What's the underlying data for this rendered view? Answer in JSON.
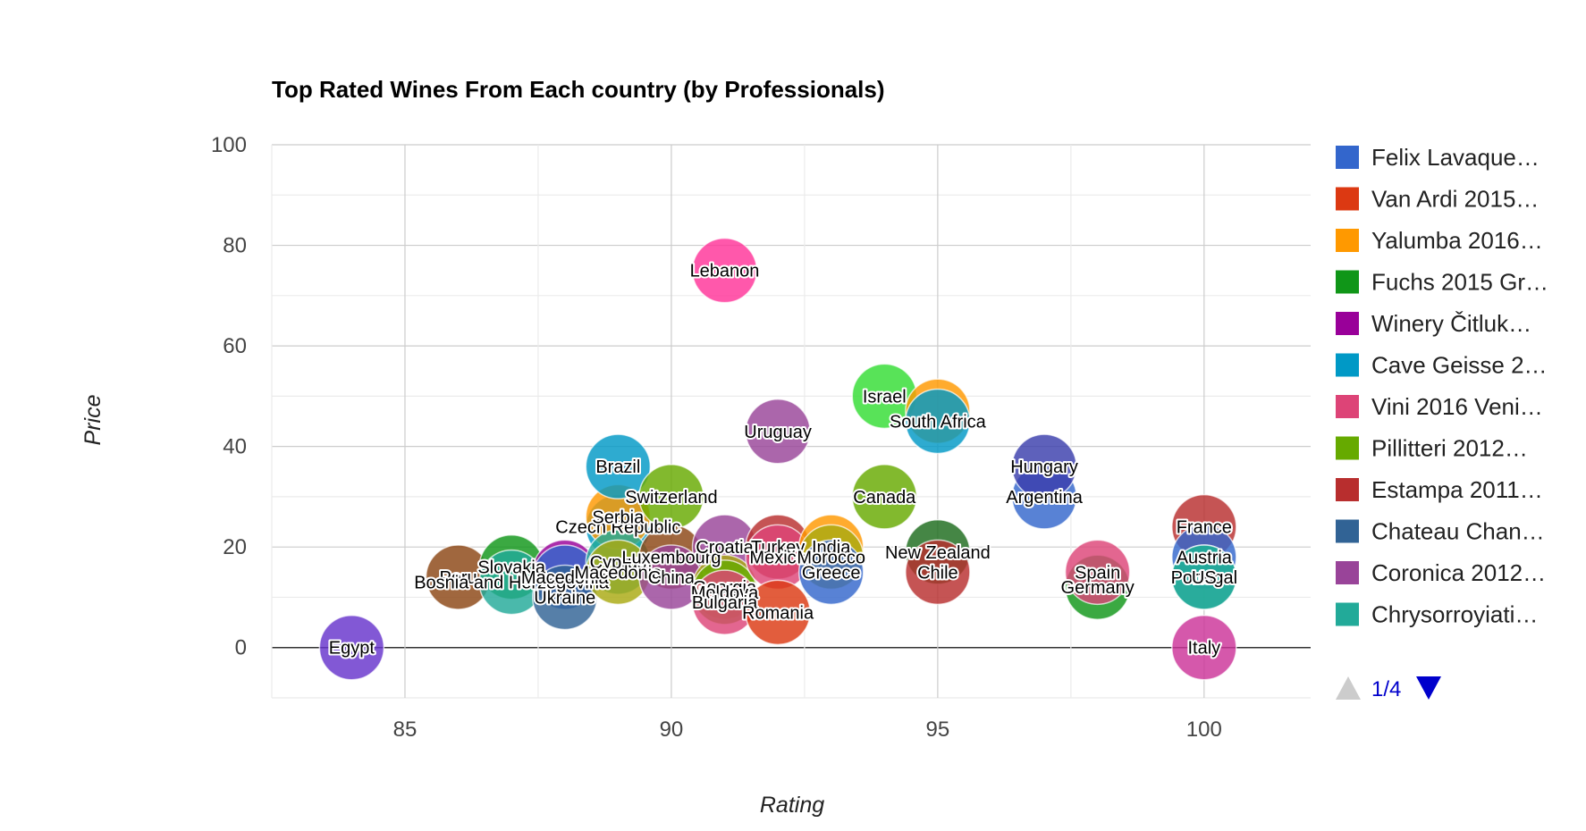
{
  "chart_data": {
    "type": "scatter",
    "variant": "bubble",
    "title": "Top Rated Wines From Each country (by Professionals)",
    "xlabel": "Rating",
    "ylabel": "Price",
    "xlim": [
      82.5,
      102
    ],
    "ylim": [
      -10,
      100
    ],
    "x_ticks": [
      85,
      90,
      95,
      100
    ],
    "y_ticks": [
      0,
      20,
      40,
      60,
      80,
      100
    ],
    "grid": true,
    "legend_position": "right",
    "pager": {
      "text": "1/4"
    },
    "legend": [
      {
        "label": "Felix Lavaque…",
        "color": "#3366cc"
      },
      {
        "label": "Van Ardi 2015…",
        "color": "#dc3912"
      },
      {
        "label": "Yalumba 2016…",
        "color": "#ff9900"
      },
      {
        "label": "Fuchs 2015 Gr…",
        "color": "#109618"
      },
      {
        "label": "Winery Čitluk…",
        "color": "#990099"
      },
      {
        "label": "Cave Geisse 2…",
        "color": "#0099c6"
      },
      {
        "label": "Vini 2016 Veni…",
        "color": "#dd4477"
      },
      {
        "label": "Pillitteri 2012…",
        "color": "#66aa00"
      },
      {
        "label": "Estampa 2011…",
        "color": "#b82e2e"
      },
      {
        "label": "Chateau Chan…",
        "color": "#316395"
      },
      {
        "label": "Coronica 2012…",
        "color": "#994499"
      },
      {
        "label": "Chrysorroyiati…",
        "color": "#22aa99"
      }
    ],
    "points": [
      {
        "label": "Egypt",
        "x": 84,
        "y": 0,
        "color": "#6633cc"
      },
      {
        "label": "Peru",
        "x": 86,
        "y": 14,
        "color": "#8b4513"
      },
      {
        "label": "Slovakia",
        "x": 87,
        "y": 16,
        "color": "#109618"
      },
      {
        "label": "Bosnia and Herzegovina",
        "x": 87,
        "y": 13,
        "color": "#22aa99"
      },
      {
        "label": "",
        "x": 88,
        "y": 15,
        "color": "#990099"
      },
      {
        "label": "Macedonia",
        "x": 88,
        "y": 14,
        "color": "#3366cc"
      },
      {
        "label": "Ukraine",
        "x": 88,
        "y": 10,
        "color": "#316395"
      },
      {
        "label": "Czech Republic",
        "x": 89,
        "y": 24,
        "color": "#0099c6"
      },
      {
        "label": "Serbia",
        "x": 89,
        "y": 26,
        "color": "#ff9900"
      },
      {
        "label": "Brazil",
        "x": 89,
        "y": 36,
        "color": "#0099c6"
      },
      {
        "label": "Cyprus",
        "x": 89,
        "y": 17,
        "color": "#22aa99"
      },
      {
        "label": "Macedonia",
        "x": 89,
        "y": 15,
        "color": "#aaaa11"
      },
      {
        "label": "Switzerland",
        "x": 90,
        "y": 30,
        "color": "#66aa00"
      },
      {
        "label": "Luxembourg",
        "x": 90,
        "y": 18,
        "color": "#8b4513"
      },
      {
        "label": "China",
        "x": 90,
        "y": 14,
        "color": "#994499"
      },
      {
        "label": "Lebanon",
        "x": 91,
        "y": 75,
        "color": "#ff3399"
      },
      {
        "label": "Croatia",
        "x": 91,
        "y": 20,
        "color": "#994499"
      },
      {
        "label": "Georgia",
        "x": 91,
        "y": 12,
        "color": "#aaaa11"
      },
      {
        "label": "Moldova",
        "x": 91,
        "y": 11,
        "color": "#66aa00"
      },
      {
        "label": "Bulgaria",
        "x": 91,
        "y": 9,
        "color": "#dd4477"
      },
      {
        "label": "Uruguay",
        "x": 92,
        "y": 43,
        "color": "#994499"
      },
      {
        "label": "Turkey",
        "x": 92,
        "y": 20,
        "color": "#b82e2e"
      },
      {
        "label": "Mexico",
        "x": 92,
        "y": 18,
        "color": "#dd4477"
      },
      {
        "label": "Romania",
        "x": 92,
        "y": 7,
        "color": "#dc3912"
      },
      {
        "label": "India",
        "x": 93,
        "y": 20,
        "color": "#ff9900"
      },
      {
        "label": "Morocco",
        "x": 93,
        "y": 18,
        "color": "#aaaa11"
      },
      {
        "label": "Greece",
        "x": 93,
        "y": 15,
        "color": "#3366cc"
      },
      {
        "label": "Israel",
        "x": 94,
        "y": 50,
        "color": "#33dd33"
      },
      {
        "label": "Canada",
        "x": 94,
        "y": 30,
        "color": "#66aa00"
      },
      {
        "label": "",
        "x": 95,
        "y": 47,
        "color": "#ff9900"
      },
      {
        "label": "South Africa",
        "x": 95,
        "y": 45,
        "color": "#0099c6"
      },
      {
        "label": "New Zealand",
        "x": 95,
        "y": 19,
        "color": "#1c6b1c"
      },
      {
        "label": "Chile",
        "x": 95,
        "y": 15,
        "color": "#b82e2e"
      },
      {
        "label": "Argentina",
        "x": 97,
        "y": 30,
        "color": "#3366cc"
      },
      {
        "label": "Hungary",
        "x": 97,
        "y": 36,
        "color": "#3b3eac"
      },
      {
        "label": "Germany",
        "x": 98,
        "y": 12,
        "color": "#109618"
      },
      {
        "label": "Spain",
        "x": 98,
        "y": 15,
        "color": "#dd4477"
      },
      {
        "label": "France",
        "x": 100,
        "y": 24,
        "color": "#b82e2e"
      },
      {
        "label": "Austria",
        "x": 100,
        "y": 18,
        "color": "#3366cc"
      },
      {
        "label": "Portugal",
        "x": 100,
        "y": 14,
        "color": "#22aa99"
      },
      {
        "label": "US",
        "x": 100,
        "y": 14,
        "color": "#22aa99"
      },
      {
        "label": "Italy",
        "x": 100,
        "y": 0,
        "color": "#cc3399"
      }
    ]
  }
}
